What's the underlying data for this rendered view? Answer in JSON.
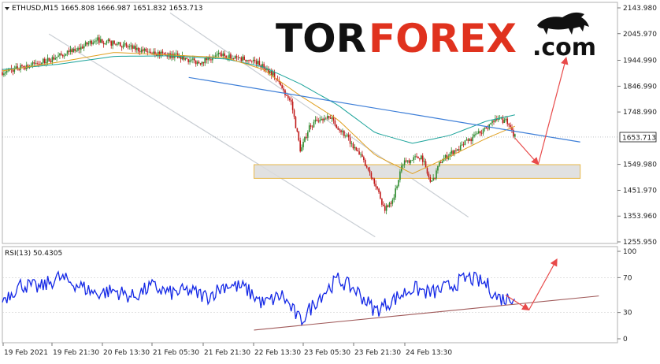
{
  "chart_data": [
    {
      "type": "line",
      "subtype": "candlestick",
      "header": "ETHUSD,M15  1665.808 1666.987 1651.832 1653.713",
      "current_price_label": "1653.713",
      "current_price": 1653.713,
      "ylim": [
        1255.95,
        2143.98
      ],
      "y_ticks": [
        "2143.980",
        "2045.970",
        "1944.990",
        "1846.990",
        "1748.990",
        "1549.980",
        "1451.970",
        "1353.960",
        "1255.950"
      ],
      "x_ticks": [
        "19 Feb 2021",
        "19 Feb 21:30",
        "20 Feb 13:30",
        "21 Feb 05:30",
        "21 Feb 21:30",
        "22 Feb 13:30",
        "23 Feb 05:30",
        "23 Feb 21:30",
        "24 Feb 13:30"
      ],
      "price_path": [
        [
          0,
          1900
        ],
        [
          4,
          1935
        ],
        [
          8,
          1985
        ],
        [
          10,
          2025
        ],
        [
          14,
          1990
        ],
        [
          17,
          1968
        ],
        [
          19,
          1960
        ],
        [
          21,
          1935
        ],
        [
          23,
          1968
        ],
        [
          25,
          1955
        ],
        [
          27,
          1945
        ],
        [
          29,
          1895
        ],
        [
          31,
          1785
        ],
        [
          32,
          1600
        ],
        [
          33,
          1700
        ],
        [
          35,
          1735
        ],
        [
          37,
          1650
        ],
        [
          39,
          1550
        ],
        [
          40,
          1480
        ],
        [
          41,
          1380
        ],
        [
          42,
          1430
        ],
        [
          43,
          1560
        ],
        [
          45,
          1580
        ],
        [
          46,
          1475
        ],
        [
          47,
          1560
        ],
        [
          48,
          1590
        ],
        [
          50,
          1640
        ],
        [
          52,
          1690
        ],
        [
          53,
          1730
        ],
        [
          54,
          1712
        ],
        [
          55,
          1655
        ]
      ],
      "ma_fast_path": [
        [
          0,
          1905
        ],
        [
          6,
          1938
        ],
        [
          12,
          1975
        ],
        [
          18,
          1965
        ],
        [
          24,
          1955
        ],
        [
          28,
          1910
        ],
        [
          32,
          1810
        ],
        [
          36,
          1720
        ],
        [
          40,
          1585
        ],
        [
          44,
          1515
        ],
        [
          48,
          1580
        ],
        [
          52,
          1650
        ],
        [
          55,
          1695
        ]
      ],
      "ma_slow_path": [
        [
          0,
          1910
        ],
        [
          6,
          1930
        ],
        [
          12,
          1960
        ],
        [
          18,
          1962
        ],
        [
          24,
          1950
        ],
        [
          28,
          1920
        ],
        [
          32,
          1855
        ],
        [
          36,
          1775
        ],
        [
          40,
          1670
        ],
        [
          44,
          1630
        ],
        [
          48,
          1660
        ],
        [
          52,
          1715
        ],
        [
          55,
          1738
        ]
      ],
      "support_zone": [
        1497,
        1549
      ],
      "resistance_trendline": [
        [
          20,
          1880
        ],
        [
          62,
          1635
        ]
      ],
      "channel_upper": [
        [
          18,
          2125
        ],
        [
          50,
          1350
        ]
      ],
      "channel_lower": [
        [
          5,
          2045
        ],
        [
          40,
          1275
        ]
      ],
      "forecast_down": [
        [
          55,
          1650
        ],
        [
          57.5,
          1550
        ]
      ],
      "forecast_up": [
        [
          57.5,
          1550
        ],
        [
          60.5,
          1955
        ]
      ],
      "colors": {
        "bull": "#2d8a2d",
        "bear": "#c01818",
        "ma_fast": "#e0a020",
        "ma_slow": "#1aa39a",
        "trendline": "#3e7fd8",
        "channel": "#c9ced4",
        "zone_fill": "#dcdcdc",
        "zone_border": "#e8b84a",
        "forecast": "#e84a4a"
      }
    },
    {
      "type": "line",
      "header": "RSI(13) 50.4305",
      "ylim": [
        0,
        100
      ],
      "y_ticks": [
        "100",
        "70",
        "30",
        "0"
      ],
      "rsi_path": [
        [
          0,
          45
        ],
        [
          2,
          62
        ],
        [
          4,
          58
        ],
        [
          6,
          70
        ],
        [
          8,
          62
        ],
        [
          10,
          52
        ],
        [
          12,
          55
        ],
        [
          14,
          48
        ],
        [
          16,
          60
        ],
        [
          18,
          52
        ],
        [
          20,
          55
        ],
        [
          22,
          48
        ],
        [
          24,
          62
        ],
        [
          26,
          58
        ],
        [
          28,
          40
        ],
        [
          30,
          50
        ],
        [
          32,
          20
        ],
        [
          34,
          48
        ],
        [
          36,
          68
        ],
        [
          38,
          55
        ],
        [
          40,
          32
        ],
        [
          42,
          45
        ],
        [
          44,
          58
        ],
        [
          46,
          52
        ],
        [
          48,
          60
        ],
        [
          50,
          70
        ],
        [
          52,
          62
        ],
        [
          53,
          48
        ],
        [
          54,
          45
        ],
        [
          55,
          50
        ]
      ],
      "support_trendline": [
        [
          27,
          10
        ],
        [
          64,
          49
        ]
      ],
      "forecast_down": [
        [
          54,
          50
        ],
        [
          56.5,
          33
        ]
      ],
      "forecast_up": [
        [
          56.5,
          33
        ],
        [
          59.5,
          91
        ]
      ],
      "colors": {
        "rsi": "#1428e6",
        "trendline": "#a05a5a",
        "forecast": "#e84a4a"
      }
    }
  ],
  "watermark": {
    "part1": "TOR",
    "part2": "FOREX",
    "part3": ".com",
    "icon": "bull-logo-icon"
  }
}
